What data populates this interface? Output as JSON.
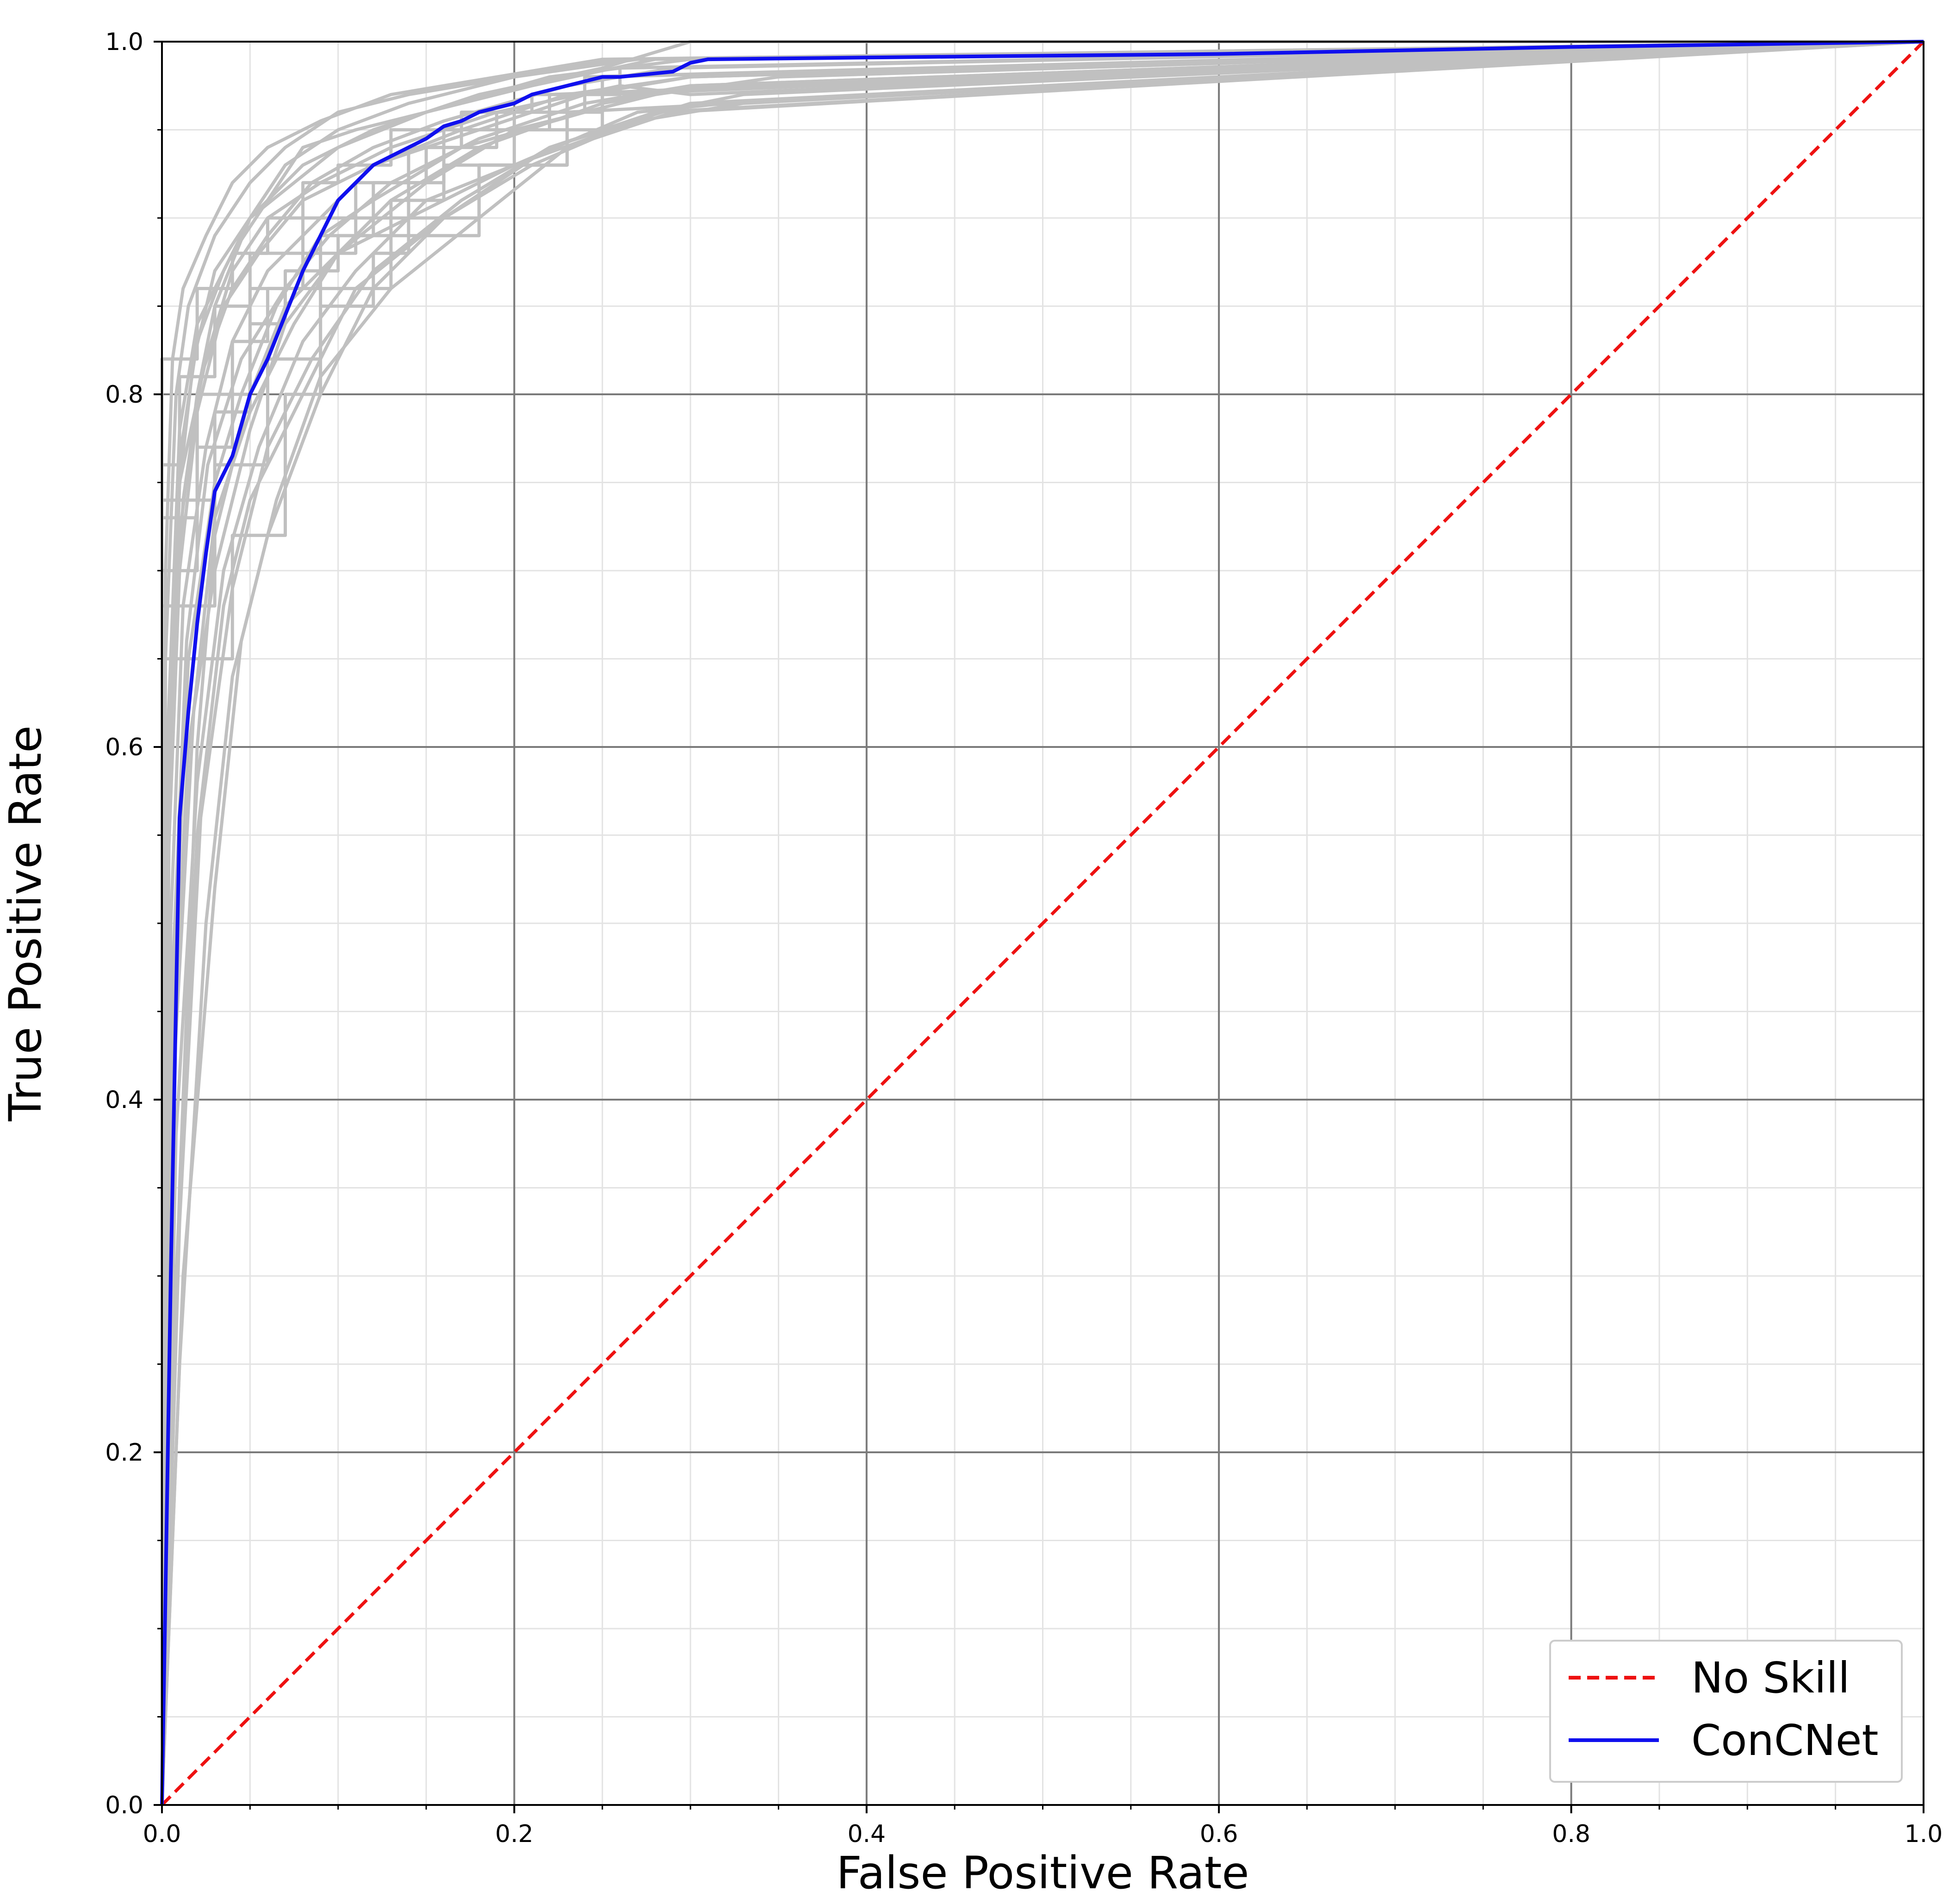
{
  "chart_data": {
    "type": "line",
    "title": "",
    "xlabel": "False Positive Rate",
    "ylabel": "True Positive Rate",
    "xlim": [
      0.0,
      1.0
    ],
    "ylim": [
      0.0,
      1.0
    ],
    "x_ticks": [
      "0.0",
      "0.2",
      "0.4",
      "0.6",
      "0.8",
      "1.0"
    ],
    "y_ticks": [
      "0.0",
      "0.2",
      "0.4",
      "0.6",
      "0.8",
      "1.0"
    ],
    "grid": "major and minor",
    "legend_position": "lower-right",
    "colors": {
      "no_skill": "#ee1111",
      "concnet": "#1010ee",
      "folds": "#c0c0c0",
      "major_grid": "#7a7a7a",
      "minor_grid": "#e3e3e3"
    },
    "series": [
      {
        "name": "No Skill",
        "style": "dashed",
        "x": [
          0.0,
          1.0
        ],
        "y": [
          0.0,
          1.0
        ]
      },
      {
        "name": "ConCNet",
        "style": "solid",
        "x": [
          0.0,
          0.005,
          0.01,
          0.015,
          0.02,
          0.025,
          0.03,
          0.04,
          0.05,
          0.06,
          0.07,
          0.08,
          0.09,
          0.1,
          0.12,
          0.14,
          0.15,
          0.16,
          0.17,
          0.18,
          0.2,
          0.21,
          0.23,
          0.25,
          0.26,
          0.28,
          0.29,
          0.3,
          0.31,
          0.4,
          0.6,
          0.8,
          1.0
        ],
        "y": [
          0.0,
          0.3,
          0.56,
          0.62,
          0.67,
          0.71,
          0.745,
          0.765,
          0.8,
          0.82,
          0.845,
          0.87,
          0.89,
          0.91,
          0.93,
          0.94,
          0.945,
          0.952,
          0.955,
          0.96,
          0.965,
          0.97,
          0.975,
          0.98,
          0.98,
          0.982,
          0.983,
          0.988,
          0.99,
          0.991,
          0.993,
          0.997,
          1.0
        ]
      }
    ],
    "background_folds": [
      {
        "x": [
          0,
          0.002,
          0.01,
          0.02,
          0.03,
          0.05,
          0.08,
          0.12,
          0.18,
          0.25,
          0.3,
          1.0
        ],
        "y": [
          0,
          0.5,
          0.72,
          0.8,
          0.85,
          0.9,
          0.93,
          0.95,
          0.97,
          0.985,
          1.0,
          1.0
        ]
      },
      {
        "x": [
          0,
          0.005,
          0.015,
          0.03,
          0.05,
          0.07,
          0.1,
          0.15,
          0.2,
          0.28,
          0.35,
          1.0
        ],
        "y": [
          0,
          0.4,
          0.6,
          0.7,
          0.78,
          0.84,
          0.88,
          0.92,
          0.95,
          0.97,
          0.98,
          1.0
        ]
      },
      {
        "x": [
          0,
          0.004,
          0.01,
          0.025,
          0.04,
          0.06,
          0.09,
          0.13,
          0.19,
          0.26,
          0.3,
          1.0
        ],
        "y": [
          0,
          0.55,
          0.75,
          0.82,
          0.87,
          0.9,
          0.92,
          0.94,
          0.96,
          0.975,
          0.97,
          1.0
        ]
      },
      {
        "x": [
          0,
          0.008,
          0.02,
          0.035,
          0.05,
          0.08,
          0.11,
          0.16,
          0.22,
          0.3,
          1.0
        ],
        "y": [
          0,
          0.3,
          0.55,
          0.68,
          0.74,
          0.8,
          0.86,
          0.9,
          0.94,
          0.965,
          1.0
        ]
      },
      {
        "x": [
          0,
          0.003,
          0.01,
          0.02,
          0.04,
          0.06,
          0.08,
          0.11,
          0.15,
          0.22,
          0.3,
          1.0
        ],
        "y": [
          0,
          0.6,
          0.78,
          0.84,
          0.88,
          0.91,
          0.94,
          0.95,
          0.96,
          0.98,
          0.99,
          1.0
        ]
      },
      {
        "x": [
          0,
          0.01,
          0.02,
          0.03,
          0.05,
          0.07,
          0.1,
          0.14,
          0.2,
          0.27,
          0.32,
          1.0
        ],
        "y": [
          0,
          0.35,
          0.6,
          0.72,
          0.8,
          0.85,
          0.88,
          0.9,
          0.93,
          0.96,
          0.965,
          1.0
        ]
      },
      {
        "x": [
          0,
          0.002,
          0.008,
          0.015,
          0.03,
          0.05,
          0.07,
          0.1,
          0.14,
          0.2,
          0.26,
          1.0
        ],
        "y": [
          0,
          0.65,
          0.8,
          0.85,
          0.89,
          0.92,
          0.94,
          0.96,
          0.97,
          0.98,
          0.99,
          1.0
        ]
      },
      {
        "x": [
          0,
          0.006,
          0.015,
          0.03,
          0.045,
          0.065,
          0.09,
          0.12,
          0.17,
          0.24,
          0.3,
          1.0
        ],
        "y": [
          0,
          0.45,
          0.65,
          0.75,
          0.8,
          0.85,
          0.89,
          0.91,
          0.94,
          0.96,
          0.975,
          1.0
        ]
      },
      {
        "x": [
          0,
          0.01,
          0.025,
          0.04,
          0.06,
          0.09,
          0.12,
          0.16,
          0.21,
          0.28,
          0.33,
          1.0
        ],
        "y": [
          0,
          0.25,
          0.5,
          0.64,
          0.72,
          0.8,
          0.86,
          0.9,
          0.93,
          0.96,
          0.97,
          1.0
        ]
      },
      {
        "x": [
          0,
          0.004,
          0.012,
          0.022,
          0.04,
          0.06,
          0.085,
          0.12,
          0.16,
          0.23,
          0.29,
          1.0
        ],
        "y": [
          0,
          0.58,
          0.74,
          0.81,
          0.86,
          0.89,
          0.92,
          0.94,
          0.955,
          0.975,
          0.985,
          1.0
        ]
      },
      {
        "x": [
          0,
          0.003,
          0.01,
          0.02,
          0.035,
          0.055,
          0.08,
          0.12,
          0.18,
          0.24,
          0.3,
          1.0
        ],
        "y": [
          0,
          0.52,
          0.7,
          0.79,
          0.85,
          0.88,
          0.91,
          0.93,
          0.95,
          0.97,
          0.98,
          1.0
        ]
      },
      {
        "x": [
          0,
          0.007,
          0.018,
          0.03,
          0.05,
          0.075,
          0.1,
          0.13,
          0.18,
          0.25,
          0.31,
          1.0
        ],
        "y": [
          0,
          0.42,
          0.62,
          0.73,
          0.79,
          0.84,
          0.88,
          0.91,
          0.94,
          0.965,
          0.975,
          1.0
        ]
      },
      {
        "x": [
          0,
          0.002,
          0.006,
          0.012,
          0.025,
          0.04,
          0.06,
          0.09,
          0.13,
          0.19,
          0.25,
          1.0
        ],
        "y": [
          0,
          0.7,
          0.82,
          0.86,
          0.89,
          0.92,
          0.94,
          0.955,
          0.97,
          0.98,
          0.99,
          1.0
        ]
      },
      {
        "x": [
          0,
          0.012,
          0.03,
          0.045,
          0.065,
          0.09,
          0.13,
          0.18,
          0.23,
          0.29,
          1.0
        ],
        "y": [
          0,
          0.3,
          0.52,
          0.66,
          0.74,
          0.81,
          0.86,
          0.9,
          0.94,
          0.96,
          1.0
        ]
      },
      {
        "x": [
          0,
          0.005,
          0.012,
          0.025,
          0.04,
          0.06,
          0.09,
          0.12,
          0.17,
          0.23,
          0.3,
          1.0
        ],
        "y": [
          0,
          0.5,
          0.68,
          0.77,
          0.83,
          0.87,
          0.9,
          0.93,
          0.95,
          0.97,
          0.98,
          1.0
        ]
      },
      {
        "x": [
          0,
          0.004,
          0.011,
          0.02,
          0.035,
          0.05,
          0.075,
          0.1,
          0.15,
          0.21,
          0.28,
          1.0
        ],
        "y": [
          0,
          0.62,
          0.77,
          0.83,
          0.87,
          0.9,
          0.92,
          0.94,
          0.96,
          0.975,
          0.99,
          1.0
        ]
      },
      {
        "x": [
          0,
          0.008,
          0.02,
          0.035,
          0.055,
          0.08,
          0.11,
          0.15,
          0.2,
          0.27,
          0.33,
          1.0
        ],
        "y": [
          0,
          0.38,
          0.58,
          0.7,
          0.77,
          0.83,
          0.87,
          0.91,
          0.93,
          0.955,
          0.965,
          1.0
        ]
      },
      {
        "x": [
          0,
          0.003,
          0.009,
          0.018,
          0.03,
          0.05,
          0.07,
          0.1,
          0.14,
          0.2,
          0.27,
          1.0
        ],
        "y": [
          0,
          0.56,
          0.74,
          0.82,
          0.87,
          0.9,
          0.93,
          0.95,
          0.965,
          0.98,
          0.99,
          1.0
        ]
      },
      {
        "x": [
          0,
          0.01,
          0.022,
          0.04,
          0.06,
          0.085,
          0.12,
          0.17,
          0.22,
          0.28,
          1.0
        ],
        "y": [
          0,
          0.33,
          0.56,
          0.69,
          0.77,
          0.82,
          0.87,
          0.91,
          0.94,
          0.96,
          1.0
        ]
      },
      {
        "x": [
          0,
          0.006,
          0.014,
          0.026,
          0.045,
          0.07,
          0.095,
          0.13,
          0.18,
          0.24,
          0.3,
          1.0
        ],
        "y": [
          0,
          0.47,
          0.66,
          0.76,
          0.82,
          0.86,
          0.89,
          0.92,
          0.945,
          0.965,
          0.975,
          1.0
        ]
      }
    ],
    "staircase_folds": [
      {
        "x": [
          0.0,
          0.0,
          0.02,
          0.02,
          0.04,
          0.04,
          0.06,
          0.06,
          0.08,
          0.08,
          0.1,
          0.1,
          0.13,
          0.13,
          0.17,
          0.17,
          0.21,
          0.21,
          0.26,
          0.26,
          1.0
        ],
        "y": [
          0.0,
          0.82,
          0.82,
          0.86,
          0.86,
          0.88,
          0.88,
          0.9,
          0.9,
          0.92,
          0.92,
          0.93,
          0.93,
          0.95,
          0.95,
          0.96,
          0.96,
          0.97,
          0.97,
          0.985,
          1.0
        ]
      },
      {
        "x": [
          0.0,
          0.0,
          0.03,
          0.03,
          0.05,
          0.05,
          0.07,
          0.07,
          0.1,
          0.1,
          0.13,
          0.13,
          0.16,
          0.16,
          0.2,
          0.2,
          0.25,
          0.25,
          1.0
        ],
        "y": [
          0.0,
          0.74,
          0.74,
          0.79,
          0.79,
          0.84,
          0.84,
          0.87,
          0.87,
          0.89,
          0.89,
          0.91,
          0.91,
          0.93,
          0.93,
          0.95,
          0.95,
          0.97,
          1.0
        ]
      },
      {
        "x": [
          0.0,
          0.0,
          0.01,
          0.01,
          0.03,
          0.03,
          0.05,
          0.05,
          0.08,
          0.08,
          0.11,
          0.11,
          0.15,
          0.15,
          0.19,
          0.19,
          0.24,
          0.24,
          1.0
        ],
        "y": [
          0.0,
          0.76,
          0.76,
          0.81,
          0.81,
          0.85,
          0.85,
          0.88,
          0.88,
          0.9,
          0.9,
          0.92,
          0.92,
          0.94,
          0.94,
          0.96,
          0.96,
          0.98,
          1.0
        ]
      },
      {
        "x": [
          0.0,
          0.0,
          0.02,
          0.02,
          0.04,
          0.04,
          0.06,
          0.06,
          0.09,
          0.09,
          0.12,
          0.12,
          0.16,
          0.16,
          0.22,
          0.22,
          1.0
        ],
        "y": [
          0.0,
          0.7,
          0.7,
          0.77,
          0.77,
          0.83,
          0.83,
          0.86,
          0.86,
          0.89,
          0.89,
          0.92,
          0.92,
          0.95,
          0.95,
          0.97,
          1.0
        ]
      },
      {
        "x": [
          0.0,
          0.0,
          0.04,
          0.04,
          0.07,
          0.07,
          0.09,
          0.09,
          0.12,
          0.12,
          0.14,
          0.14,
          0.18,
          0.18,
          0.23,
          0.23,
          1.0
        ],
        "y": [
          0.0,
          0.65,
          0.65,
          0.72,
          0.72,
          0.8,
          0.8,
          0.85,
          0.85,
          0.88,
          0.88,
          0.9,
          0.9,
          0.93,
          0.93,
          0.96,
          1.0
        ]
      },
      {
        "x": [
          0.0,
          0.0,
          0.02,
          0.02,
          0.05,
          0.05,
          0.08,
          0.08,
          0.11,
          0.11,
          0.14,
          0.14,
          0.17,
          0.17,
          0.2,
          0.2,
          0.25,
          0.25,
          1.0
        ],
        "y": [
          0.0,
          0.73,
          0.73,
          0.8,
          0.8,
          0.86,
          0.86,
          0.88,
          0.88,
          0.9,
          0.9,
          0.94,
          0.94,
          0.95,
          0.95,
          0.96,
          0.96,
          0.98,
          1.0
        ]
      },
      {
        "x": [
          0.0,
          0.0,
          0.03,
          0.03,
          0.06,
          0.06,
          0.09,
          0.09,
          0.13,
          0.13,
          0.18,
          0.18,
          0.23,
          0.23,
          1.0
        ],
        "y": [
          0.0,
          0.68,
          0.68,
          0.76,
          0.76,
          0.82,
          0.82,
          0.86,
          0.86,
          0.89,
          0.89,
          0.93,
          0.93,
          0.97,
          1.0
        ]
      }
    ]
  },
  "legend": {
    "entries": [
      {
        "label": "No Skill",
        "color": "#ee1111",
        "style": "dashed"
      },
      {
        "label": "ConCNet",
        "color": "#1010ee",
        "style": "solid"
      }
    ]
  }
}
